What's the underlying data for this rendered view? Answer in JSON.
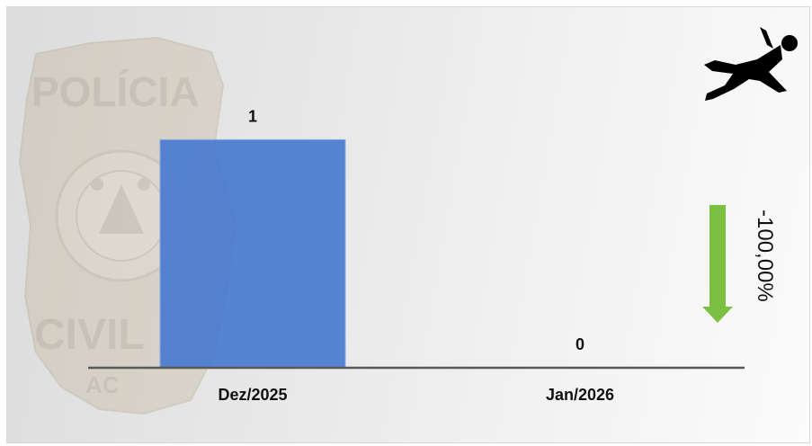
{
  "chart_data": {
    "type": "bar",
    "categories": [
      "Dez/2025",
      "Jan/2026"
    ],
    "values": [
      1,
      0
    ],
    "ylim": [
      0,
      1.1
    ],
    "bar_color": "#4a7bd0",
    "title": "",
    "xlabel": "",
    "ylabel": ""
  },
  "watermark": {
    "top_text": "POLÍCIA",
    "bottom_text": "CIVIL",
    "region_text": "AC"
  },
  "change_indicator": {
    "text": "-100,00%",
    "direction": "down",
    "arrow_color": "#7bc043"
  },
  "icon": "fallen-person-icon",
  "colors": {
    "axis": "#595959",
    "background_left": "#dcdcdc",
    "background_right": "#fbfbfb"
  }
}
